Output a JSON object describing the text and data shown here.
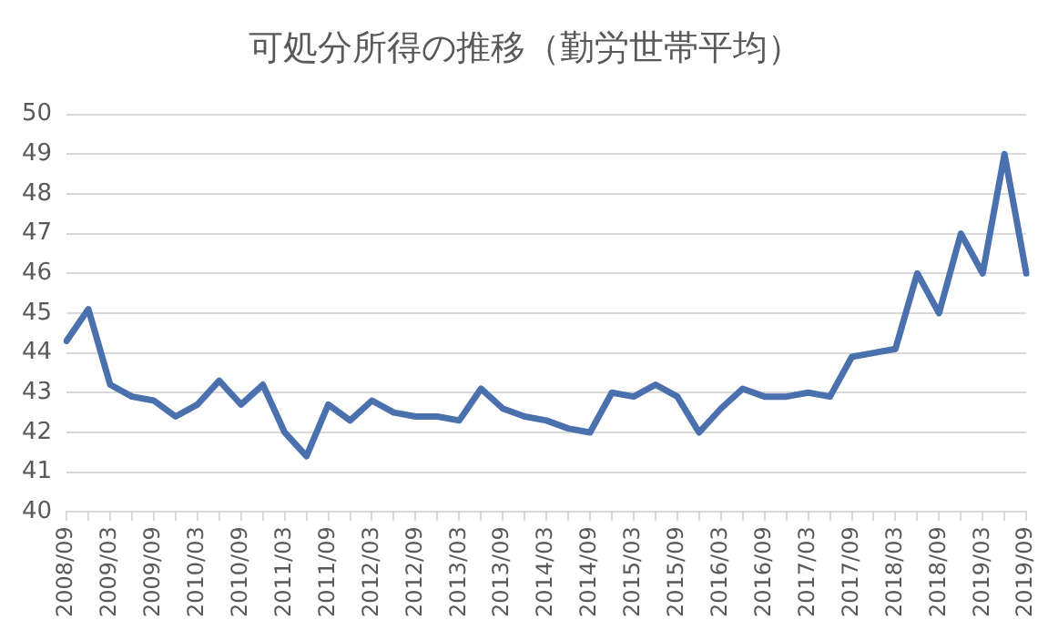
{
  "chart_data": {
    "type": "line",
    "title": "可処分所得の推移（勤労世帯平均）",
    "categories": [
      "2008/09",
      null,
      "2009/03",
      null,
      "2009/09",
      null,
      "2010/03",
      null,
      "2010/09",
      null,
      "2011/03",
      null,
      "2011/09",
      null,
      "2012/03",
      null,
      "2012/09",
      null,
      "2013/03",
      null,
      "2013/09",
      null,
      "2014/03",
      null,
      "2014/09",
      null,
      "2015/03",
      null,
      "2015/09",
      null,
      "2016/03",
      null,
      "2016/09",
      null,
      "2017/03",
      null,
      "2017/09",
      null,
      "2018/03",
      null,
      "2018/09",
      null,
      "2019/03",
      null,
      "2019/09"
    ],
    "series": [
      {
        "color": "#4a70ad",
        "values": [
          44.3,
          45.1,
          43.2,
          42.9,
          42.8,
          42.4,
          42.7,
          43.3,
          42.7,
          43.2,
          42.0,
          41.4,
          42.7,
          42.3,
          42.8,
          42.5,
          42.4,
          42.4,
          42.3,
          43.1,
          42.6,
          42.4,
          42.3,
          42.1,
          42.0,
          43.0,
          42.9,
          43.2,
          42.9,
          42.0,
          42.6,
          43.1,
          42.9,
          42.9,
          43.0,
          42.9,
          43.9,
          44.0,
          44.1,
          46.0,
          45.0,
          47.0,
          46.0,
          49.0,
          46.0
        ]
      }
    ],
    "ylim": [
      40,
      50
    ],
    "yticks": [
      40,
      41,
      42,
      43,
      44,
      45,
      46,
      47,
      48,
      49,
      50
    ],
    "grid": "y",
    "legend": false,
    "marker": "none",
    "line_style": "solid"
  }
}
